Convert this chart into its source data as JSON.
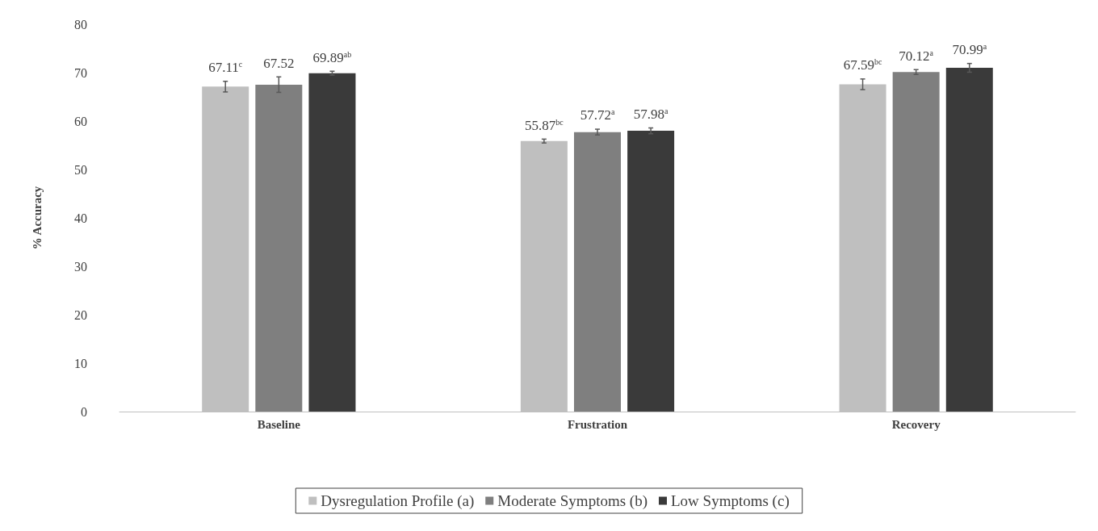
{
  "chart_data": {
    "type": "bar",
    "ylabel": "% Accuracy",
    "categories": [
      "Baseline",
      "Frustration",
      "Recovery"
    ],
    "series": [
      {
        "name": "Dysregulation Profile (a)",
        "color": "#bfbfbf",
        "values": [
          67.11,
          55.87,
          67.59
        ],
        "errors": [
          1.1,
          0.4,
          1.1
        ],
        "value_labels": [
          "67.11$^{c}$",
          "55.87$^{bc}$",
          "67.59$^{bc}$"
        ]
      },
      {
        "name": "Moderate Symptoms (b)",
        "color": "#7f7f7f",
        "values": [
          67.52,
          57.72,
          70.12
        ],
        "errors": [
          1.6,
          0.6,
          0.5
        ],
        "value_labels": [
          "67.52",
          "57.72$^{a}$",
          "70.12$^{a}$"
        ]
      },
      {
        "name": "Low Symptoms (c)",
        "color": "#3a3a3a",
        "values": [
          69.89,
          57.98,
          70.99
        ],
        "errors": [
          0.4,
          0.6,
          0.9
        ],
        "value_labels": [
          "69.89$^{ab}$",
          "57.98$^{a}$",
          "70.99$^{a}$"
        ]
      }
    ],
    "ylim": [
      0,
      80
    ],
    "yticks": [
      0,
      10,
      20,
      30,
      40,
      50,
      60,
      70,
      80
    ],
    "grid": false,
    "legend": "bottom"
  }
}
